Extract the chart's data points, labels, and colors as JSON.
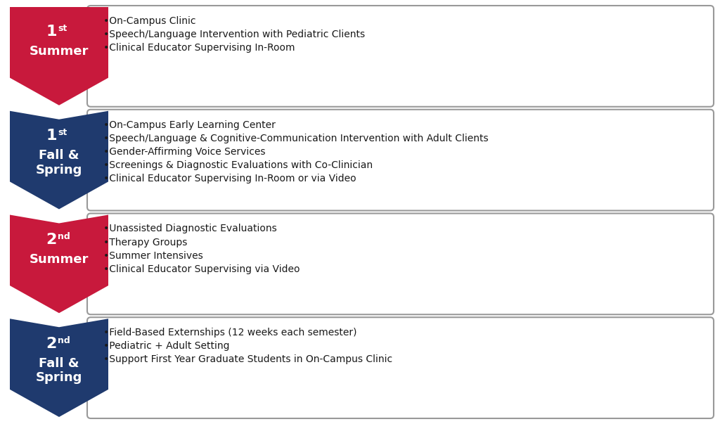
{
  "rows": [
    {
      "label_line1": "1",
      "label_sup": "st",
      "label_line2": "Summer",
      "label_combined": "1st\nSummer",
      "color": "#C8193C",
      "bullets": [
        "On-Campus Clinic",
        "Speech/Language Intervention with Pediatric Clients",
        "Clinical Educator Supervising In-Room"
      ]
    },
    {
      "label_line1": "1",
      "label_sup": "st",
      "label_line2": "Fall &\nSpring",
      "label_combined": "1st Fall &\nSpring",
      "color": "#1F3A6E",
      "bullets": [
        "On-Campus Early Learning Center",
        "Speech/Language & Cognitive-Communication Intervention with Adult Clients",
        "Gender-Affirming Voice Services",
        "Screenings & Diagnostic Evaluations with Co-Clinician",
        "Clinical Educator Supervising In-Room or via Video"
      ]
    },
    {
      "label_line1": "2",
      "label_sup": "nd",
      "label_line2": "Summer",
      "label_combined": "2nd\nSummer",
      "color": "#C8193C",
      "bullets": [
        "Unassisted Diagnostic Evaluations",
        "Therapy Groups",
        "Summer Intensives",
        "Clinical Educator Supervising via Video"
      ]
    },
    {
      "label_line1": "2",
      "label_sup": "nd",
      "label_line2": "Fall &\nSpring",
      "label_combined": "2nd Fall &\nSpring",
      "color": "#1F3A6E",
      "bullets": [
        "Field-Based Externships (12 weeks each semester)",
        "Pediatric + Adult Setting",
        "Support First Year Graduate Students in On-Campus Clinic"
      ]
    }
  ],
  "bg_color": "#FFFFFF",
  "box_border_color": "#999999",
  "text_color": "#1A1A1A",
  "label_text_color": "#FFFFFF",
  "bullet_char": "•"
}
